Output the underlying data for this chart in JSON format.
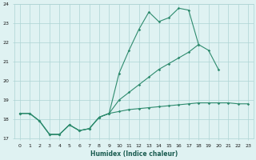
{
  "xlabel": "Humidex (Indice chaleur)",
  "x_values": [
    0,
    1,
    2,
    3,
    4,
    5,
    6,
    7,
    8,
    9,
    10,
    11,
    12,
    13,
    14,
    15,
    16,
    17,
    18,
    19,
    20,
    21,
    22,
    23
  ],
  "line1_y": [
    18.3,
    18.3,
    17.9,
    17.2,
    17.2,
    17.7,
    17.4,
    17.5,
    18.1,
    18.3,
    20.4,
    21.6,
    22.7,
    23.6,
    23.1,
    23.3,
    23.8,
    23.7,
    21.9,
    null,
    null,
    null,
    null,
    null
  ],
  "line2_y": [
    18.3,
    18.3,
    17.9,
    17.2,
    17.2,
    17.7,
    17.4,
    17.5,
    18.1,
    18.3,
    19.0,
    19.4,
    19.8,
    20.2,
    20.6,
    20.9,
    21.2,
    21.5,
    21.9,
    21.6,
    20.6,
    null,
    null,
    null
  ],
  "line3_y": [
    18.3,
    18.3,
    17.9,
    17.2,
    17.2,
    17.7,
    17.4,
    17.5,
    18.1,
    18.3,
    18.4,
    18.5,
    18.55,
    18.6,
    18.65,
    18.7,
    18.75,
    18.8,
    18.85,
    18.85,
    18.85,
    18.85,
    18.8,
    18.8
  ],
  "line_color": "#2e8b6e",
  "bg_color": "#dff2f2",
  "grid_color": "#aed4d4",
  "ylim": [
    17,
    24
  ],
  "yticks": [
    17,
    18,
    19,
    20,
    21,
    22,
    23,
    24
  ],
  "xlim": [
    0,
    23
  ],
  "xticks": [
    0,
    1,
    2,
    3,
    4,
    5,
    6,
    7,
    8,
    9,
    10,
    11,
    12,
    13,
    14,
    15,
    16,
    17,
    18,
    19,
    20,
    21,
    22,
    23
  ]
}
